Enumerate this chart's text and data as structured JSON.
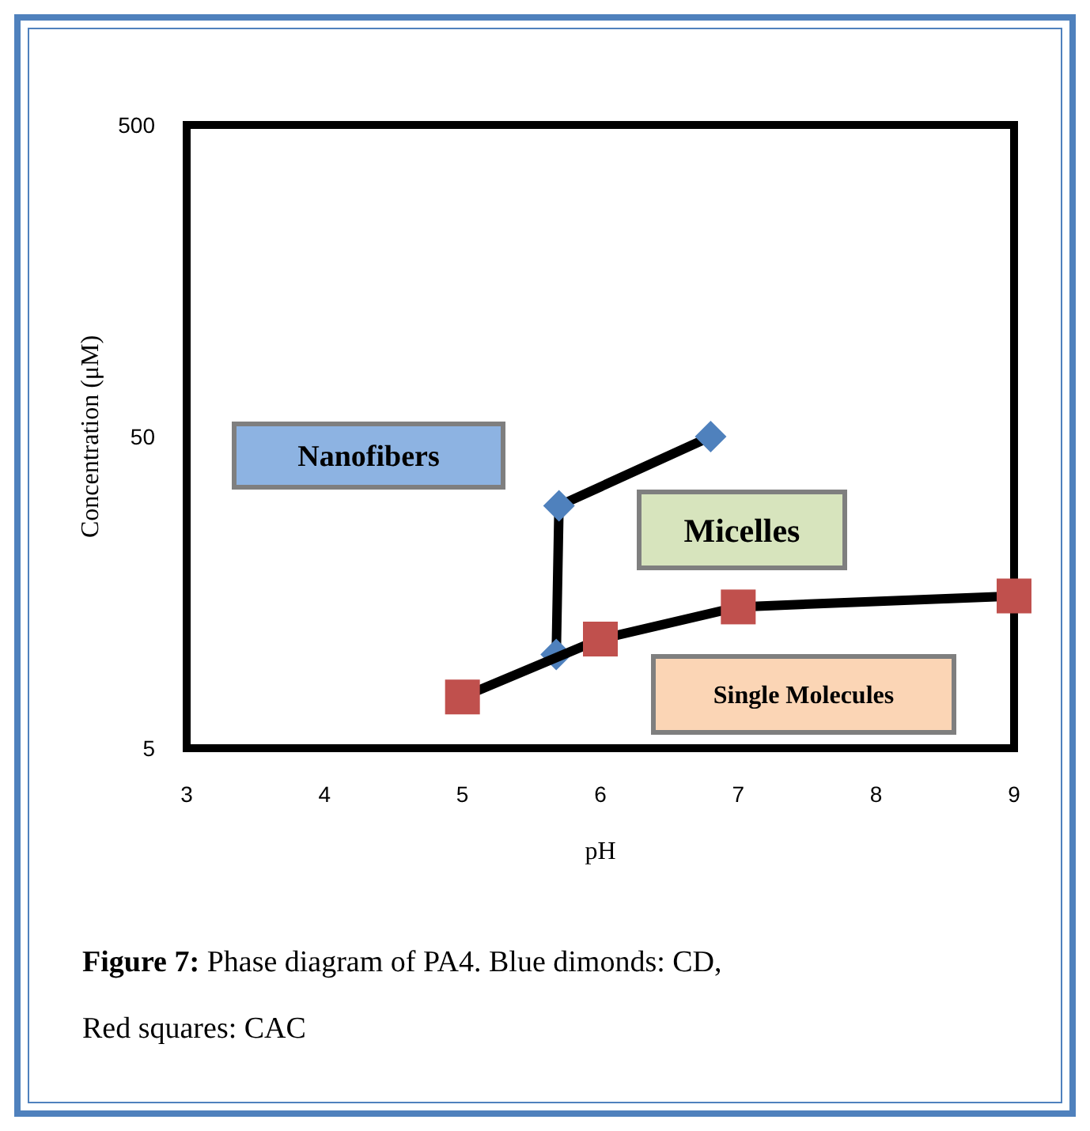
{
  "chart_data": {
    "type": "line",
    "xlabel": "pH",
    "ylabel": "Concentration (μM)",
    "xlim": [
      3,
      9
    ],
    "xticks": [
      3,
      4,
      5,
      6,
      7,
      8,
      9
    ],
    "ylim": [
      5,
      500
    ],
    "yticks": [
      5,
      50,
      500
    ],
    "log": "y",
    "grid": false,
    "series": [
      {
        "color": "#4f81bd",
        "marker": "diamond",
        "x": [
          5.68,
          5.7,
          6.8
        ],
        "values": [
          10,
          30,
          50
        ]
      },
      {
        "color": "#c0504d",
        "marker": "square",
        "x": [
          5,
          6,
          7,
          9
        ],
        "values": [
          7.3,
          11.2,
          14.2,
          15.4
        ]
      }
    ],
    "annotations": [
      "Nanofibers",
      "Micelles",
      "Single Molecules",
      "Figure 7: Phase diagram of PA4. Blue dimonds: CD, Red squares: CAC"
    ]
  }
}
